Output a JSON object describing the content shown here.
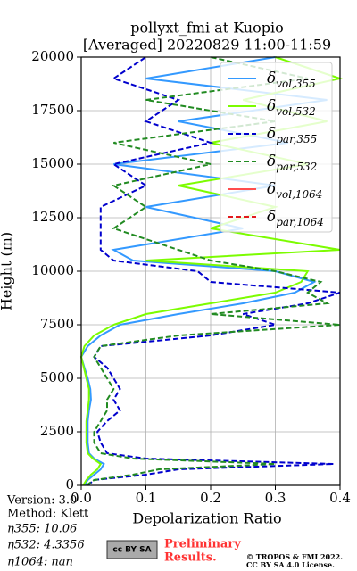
{
  "chart_data": {
    "type": "profile",
    "title": "pollyxt_fmi at Kuopio",
    "subtitle": "[Averaged] 20220829 11:00-11:59",
    "xlabel": "Depolarization Ratio",
    "ylabel": "Height (m)",
    "heights": [
      0,
      250,
      500,
      750,
      1000,
      1250,
      1500,
      2000,
      2500,
      3000,
      3500,
      4000,
      4500,
      5000,
      5500,
      6000,
      6500,
      7000,
      7500,
      8000,
      8500,
      9000,
      9500,
      10000,
      10500,
      11000,
      12000,
      13000,
      14000,
      15000,
      16000,
      17000,
      18000,
      19000,
      20000
    ],
    "series": [
      {
        "name": "δvol,355",
        "color": "#3399ff",
        "dash": false,
        "values": [
          0.005,
          0.01,
          0.02,
          0.03,
          0.035,
          0.02,
          0.012,
          0.01,
          0.01,
          0.01,
          0.012,
          0.015,
          0.014,
          0.01,
          0.005,
          0.0,
          0.01,
          0.03,
          0.06,
          0.15,
          0.25,
          0.33,
          0.36,
          0.3,
          0.08,
          0.05,
          0.25,
          0.1,
          0.3,
          0.05,
          0.32,
          0.15,
          0.38,
          0.1,
          0.3
        ]
      },
      {
        "name": "δvol,532",
        "color": "#7cfc00",
        "dash": false,
        "values": [
          0.003,
          0.008,
          0.015,
          0.025,
          0.03,
          0.018,
          0.01,
          0.008,
          0.008,
          0.008,
          0.01,
          0.012,
          0.012,
          0.008,
          0.004,
          0.0,
          0.005,
          0.02,
          0.05,
          0.1,
          0.2,
          0.3,
          0.34,
          0.35,
          0.1,
          0.4,
          0.2,
          0.3,
          0.15,
          0.35,
          0.2,
          0.38,
          0.25,
          0.4,
          0.3
        ]
      },
      {
        "name": "δpar,355",
        "color": "#0000cd",
        "dash": true,
        "values": [
          0.01,
          0.02,
          0.1,
          0.15,
          0.39,
          0.1,
          0.04,
          0.03,
          0.025,
          0.04,
          0.06,
          0.05,
          0.06,
          0.05,
          0.04,
          0.02,
          0.03,
          0.2,
          0.3,
          0.25,
          0.35,
          0.4,
          0.2,
          0.18,
          0.05,
          0.03,
          0.03,
          0.03,
          0.1,
          0.05,
          0.2,
          0.1,
          0.15,
          0.05,
          0.1
        ]
      },
      {
        "name": "δpar,532",
        "color": "#228b22",
        "dash": true,
        "values": [
          0.008,
          0.02,
          0.08,
          0.12,
          0.3,
          0.08,
          0.03,
          0.02,
          0.02,
          0.03,
          0.04,
          0.04,
          0.05,
          0.04,
          0.03,
          0.02,
          0.03,
          0.15,
          0.4,
          0.2,
          0.38,
          0.35,
          0.37,
          0.3,
          0.2,
          0.15,
          0.05,
          0.1,
          0.05,
          0.2,
          0.05,
          0.3,
          0.1,
          0.35,
          0.2
        ]
      },
      {
        "name": "δvol,1064",
        "color": "#ff4d4d",
        "dash": false,
        "values": [
          null,
          null,
          null,
          null,
          null,
          null,
          null,
          null,
          null,
          null,
          null,
          null,
          null,
          null,
          null,
          null,
          null,
          null,
          null,
          null,
          null,
          null,
          null,
          null,
          null,
          null,
          null,
          null,
          null,
          null,
          null,
          null,
          null,
          null,
          null
        ]
      },
      {
        "name": "δpar,1064",
        "color": "#e31a1c",
        "dash": true,
        "values": [
          null,
          null,
          null,
          null,
          null,
          null,
          null,
          null,
          null,
          null,
          null,
          null,
          null,
          null,
          null,
          null,
          null,
          null,
          null,
          null,
          null,
          null,
          null,
          null,
          null,
          null,
          null,
          null,
          null,
          null,
          null,
          null,
          null,
          null,
          null
        ]
      }
    ],
    "xlim": [
      0,
      0.4
    ],
    "xticks": [
      {
        "value": 0,
        "label": "0.0"
      },
      0.1,
      0.2,
      0.3,
      0.4
    ],
    "ylim": [
      0,
      20000
    ],
    "yticks": [
      0,
      2500,
      5000,
      7500,
      10000,
      12500,
      15000,
      17500,
      20000
    ],
    "grid": true,
    "legend": "upper right"
  },
  "info": [
    "Version: 3.0",
    "Method: Klett",
    "η355:  10.06",
    "η532: 4.3356",
    "η1064:    nan"
  ],
  "logo": "cc BY SA",
  "preliminary": [
    "Preliminary",
    "Results."
  ],
  "copyright": [
    "© TROPOS & FMI 2022.",
    "CC BY SA 4.0 License."
  ]
}
